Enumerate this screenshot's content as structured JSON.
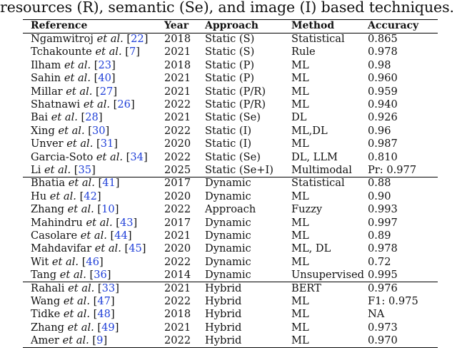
{
  "caption": "resources (R), semantic (Se), and image (I) based techniques.",
  "colors": {
    "citation": "#1f3fd8"
  },
  "headers": {
    "reference": "Reference",
    "year": "Year",
    "approach": "Approach",
    "method": "Method",
    "accuracy": "Accuracy"
  },
  "groups": [
    {
      "rows": [
        {
          "author": "Ngamwitroj",
          "etal": "et al.",
          "cite": "22",
          "year": "2018",
          "approach": "Static (S)",
          "method": "Statistical",
          "accuracy": "0.865"
        },
        {
          "author": "Tchakounte",
          "etal": "et al.",
          "cite": "7",
          "year": "2021",
          "approach": "Static (S)",
          "method": "Rule",
          "accuracy": "0.978"
        },
        {
          "author": "Ilham",
          "etal": "et al.",
          "cite": "23",
          "year": "2018",
          "approach": "Static (P)",
          "method": "ML",
          "accuracy": "0.98"
        },
        {
          "author": "Sahin",
          "etal": "et al.",
          "cite": "40",
          "year": "2021",
          "approach": "Static (P)",
          "method": "ML",
          "accuracy": "0.960"
        },
        {
          "author": "Millar",
          "etal": "et al.",
          "cite": "27",
          "year": "2021",
          "approach": "Static (P/R)",
          "method": "ML",
          "accuracy": "0.959"
        },
        {
          "author": "Shatnawi",
          "etal": "et al.",
          "cite": "26",
          "year": "2022",
          "approach": "Static (P/R)",
          "method": "ML",
          "accuracy": "0.940"
        },
        {
          "author": "Bai",
          "etal": "et al.",
          "cite": "28",
          "year": "2021",
          "approach": "Static (Se)",
          "method": "DL",
          "accuracy": "0.926"
        },
        {
          "author": "Xing",
          "etal": "et al.",
          "cite": "30",
          "year": "2022",
          "approach": "Static (I)",
          "method": "ML,DL",
          "accuracy": "0.96"
        },
        {
          "author": "Unver",
          "etal": "et al.",
          "cite": "31",
          "year": "2020",
          "approach": "Static (I)",
          "method": "ML",
          "accuracy": "0.987"
        },
        {
          "author": "Garcia-Soto",
          "etal": "et al.",
          "cite": "34",
          "year": "2022",
          "approach": "Static (Se)",
          "method": "DL, LLM",
          "accuracy": "0.810"
        },
        {
          "author": "Li",
          "etal": "et al.",
          "cite": "35",
          "year": "2025",
          "approach": "Static (Se+I)",
          "method": "Multimodal",
          "accuracy": "Pr: 0.977"
        }
      ]
    },
    {
      "rows": [
        {
          "author": "Bhatia",
          "etal": "et al.",
          "cite": "41",
          "year": "2017",
          "approach": "Dynamic",
          "method": "Statistical",
          "accuracy": "0.88"
        },
        {
          "author": "Hu",
          "etal": "et al.",
          "cite": "42",
          "year": "2020",
          "approach": "Dynamic",
          "method": "ML",
          "accuracy": "0.90"
        },
        {
          "author": "Zhang",
          "etal": "et al.",
          "cite": "10",
          "year": "2022",
          "approach": "Approach",
          "method": "Fuzzy",
          "accuracy": "0.993"
        },
        {
          "author": "Mahindru",
          "etal": "et al.",
          "cite": "43",
          "year": "2017",
          "approach": "Dynamic",
          "method": "ML",
          "accuracy": "0.997"
        },
        {
          "author": "Casolare",
          "etal": "et al.",
          "cite": "44",
          "year": "2021",
          "approach": "Dynamic",
          "method": "ML",
          "accuracy": "0.89"
        },
        {
          "author": "Mahdavifar",
          "etal": "et al.",
          "cite": "45",
          "year": "2020",
          "approach": "Dynamic",
          "method": "ML, DL",
          "accuracy": "0.978"
        },
        {
          "author": "Wit",
          "etal": "et al.",
          "cite": "46",
          "year": "2022",
          "approach": "Dynamic",
          "method": "ML",
          "accuracy": "0.72"
        },
        {
          "author": "Tang",
          "etal": "et al.",
          "cite": "36",
          "year": "2014",
          "approach": "Dynamic",
          "method": "Unsupervised",
          "accuracy": "0.995"
        }
      ]
    },
    {
      "rows": [
        {
          "author": "Rahali",
          "etal": "et al.",
          "cite": "33",
          "year": "2021",
          "approach": "Hybrid",
          "method": "BERT",
          "accuracy": "0.976"
        },
        {
          "author": "Wang",
          "etal": "et al.",
          "cite": "47",
          "year": "2022",
          "approach": "Hybrid",
          "method": "ML",
          "accuracy": "F1: 0.975"
        },
        {
          "author": "Tidke",
          "etal": "et al.",
          "cite": "48",
          "year": "2018",
          "approach": "Hybrid",
          "method": "ML",
          "accuracy": "NA"
        },
        {
          "author": "Zhang",
          "etal": "et al.",
          "cite": "49",
          "year": "2021",
          "approach": "Hybrid",
          "method": "ML",
          "accuracy": "0.973"
        },
        {
          "author": "Amer",
          "etal": "et al.",
          "cite": "9",
          "year": "2022",
          "approach": "Hybrid",
          "method": "ML",
          "accuracy": "0.970"
        }
      ]
    }
  ]
}
